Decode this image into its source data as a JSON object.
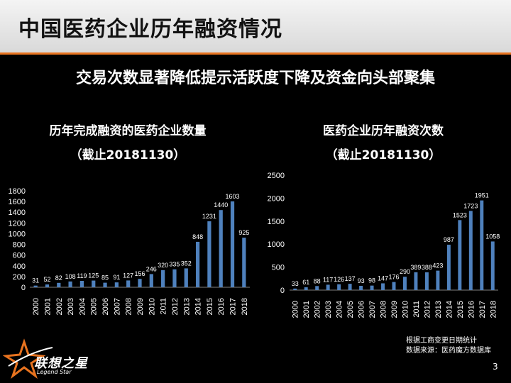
{
  "header": {
    "title": "中国医药企业历年融资情况"
  },
  "subtitle": "交易次数显著降低提示活跃度下降及资金向头部聚集",
  "charts": [
    {
      "title_line1": "历年完成融资的医药企业数量",
      "title_line2": "（截止20181130）"
    },
    {
      "title_line1": "医药企业历年融资次数",
      "title_line2": "（截止20181130）"
    }
  ],
  "colors": {
    "bar": "#4f81bd",
    "accent": "#e8731f",
    "background": "#000000",
    "text": "#ffffff"
  },
  "chart_data": [
    {
      "type": "bar",
      "title": "历年完成融资的医药企业数量",
      "categories": [
        "2000",
        "2001",
        "2002",
        "2003",
        "2004",
        "2005",
        "2006",
        "2007",
        "2008",
        "2009",
        "2010",
        "2011",
        "2012",
        "2013",
        "2014",
        "2015",
        "2016",
        "2017",
        "2018"
      ],
      "values": [
        31,
        52,
        82,
        108,
        119,
        125,
        85,
        91,
        127,
        156,
        246,
        320,
        335,
        352,
        848,
        1231,
        1440,
        1603,
        925
      ],
      "yticks": [
        0,
        200,
        400,
        600,
        800,
        1000,
        1200,
        1400,
        1600,
        1800
      ],
      "ylim": [
        0,
        1800
      ],
      "grid": false,
      "data_labels": true
    },
    {
      "type": "bar",
      "title": "医药企业历年融资次数",
      "categories": [
        "2000",
        "2001",
        "2002",
        "2003",
        "2004",
        "2005",
        "2006",
        "2007",
        "2008",
        "2009",
        "2010",
        "2011",
        "2012",
        "2013",
        "2014",
        "2015",
        "2016",
        "2017",
        "2018"
      ],
      "values": [
        33,
        61,
        88,
        117,
        126,
        137,
        93,
        98,
        147,
        176,
        290,
        389,
        388,
        423,
        987,
        1523,
        1723,
        1951,
        1058
      ],
      "yticks": [
        0,
        500,
        1000,
        1500,
        2000,
        2500
      ],
      "ylim": [
        0,
        2500
      ],
      "grid": false,
      "data_labels": true
    }
  ],
  "footer": {
    "note_line1": "根据工商变更日期统计",
    "note_line2": "数据来源：医药魔方数据库",
    "page_number": "3",
    "logo_text": "联想之星",
    "logo_subtext": "Legend Star"
  }
}
